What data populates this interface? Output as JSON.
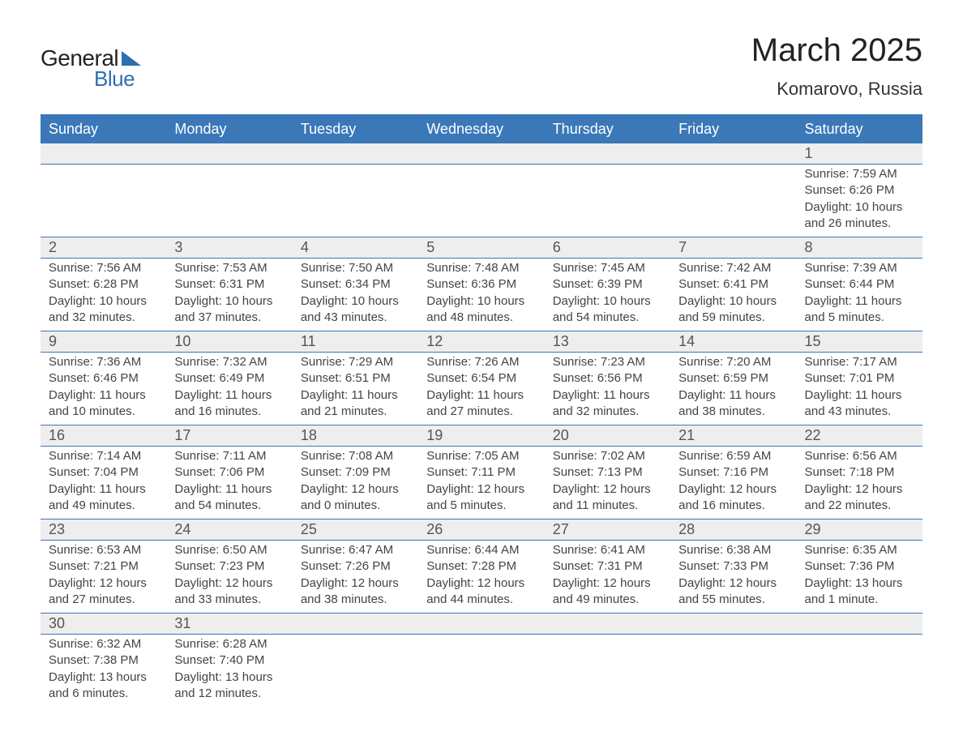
{
  "logo": {
    "general": "General",
    "blue": "Blue"
  },
  "title": {
    "month": "March 2025",
    "location": "Komarovo, Russia"
  },
  "colors": {
    "header_bg": "#3a78b8",
    "header_text": "#ffffff",
    "daynum_bg": "#eeeeee",
    "border": "#3a78b8",
    "body_text": "#444444",
    "logo_blue": "#2e6fb0",
    "background": "#ffffff"
  },
  "weekdays": [
    "Sunday",
    "Monday",
    "Tuesday",
    "Wednesday",
    "Thursday",
    "Friday",
    "Saturday"
  ],
  "weeks": [
    [
      null,
      null,
      null,
      null,
      null,
      null,
      {
        "d": "1",
        "sr": "Sunrise: 7:59 AM",
        "ss": "Sunset: 6:26 PM",
        "dl1": "Daylight: 10 hours",
        "dl2": "and 26 minutes."
      }
    ],
    [
      {
        "d": "2",
        "sr": "Sunrise: 7:56 AM",
        "ss": "Sunset: 6:28 PM",
        "dl1": "Daylight: 10 hours",
        "dl2": "and 32 minutes."
      },
      {
        "d": "3",
        "sr": "Sunrise: 7:53 AM",
        "ss": "Sunset: 6:31 PM",
        "dl1": "Daylight: 10 hours",
        "dl2": "and 37 minutes."
      },
      {
        "d": "4",
        "sr": "Sunrise: 7:50 AM",
        "ss": "Sunset: 6:34 PM",
        "dl1": "Daylight: 10 hours",
        "dl2": "and 43 minutes."
      },
      {
        "d": "5",
        "sr": "Sunrise: 7:48 AM",
        "ss": "Sunset: 6:36 PM",
        "dl1": "Daylight: 10 hours",
        "dl2": "and 48 minutes."
      },
      {
        "d": "6",
        "sr": "Sunrise: 7:45 AM",
        "ss": "Sunset: 6:39 PM",
        "dl1": "Daylight: 10 hours",
        "dl2": "and 54 minutes."
      },
      {
        "d": "7",
        "sr": "Sunrise: 7:42 AM",
        "ss": "Sunset: 6:41 PM",
        "dl1": "Daylight: 10 hours",
        "dl2": "and 59 minutes."
      },
      {
        "d": "8",
        "sr": "Sunrise: 7:39 AM",
        "ss": "Sunset: 6:44 PM",
        "dl1": "Daylight: 11 hours",
        "dl2": "and 5 minutes."
      }
    ],
    [
      {
        "d": "9",
        "sr": "Sunrise: 7:36 AM",
        "ss": "Sunset: 6:46 PM",
        "dl1": "Daylight: 11 hours",
        "dl2": "and 10 minutes."
      },
      {
        "d": "10",
        "sr": "Sunrise: 7:32 AM",
        "ss": "Sunset: 6:49 PM",
        "dl1": "Daylight: 11 hours",
        "dl2": "and 16 minutes."
      },
      {
        "d": "11",
        "sr": "Sunrise: 7:29 AM",
        "ss": "Sunset: 6:51 PM",
        "dl1": "Daylight: 11 hours",
        "dl2": "and 21 minutes."
      },
      {
        "d": "12",
        "sr": "Sunrise: 7:26 AM",
        "ss": "Sunset: 6:54 PM",
        "dl1": "Daylight: 11 hours",
        "dl2": "and 27 minutes."
      },
      {
        "d": "13",
        "sr": "Sunrise: 7:23 AM",
        "ss": "Sunset: 6:56 PM",
        "dl1": "Daylight: 11 hours",
        "dl2": "and 32 minutes."
      },
      {
        "d": "14",
        "sr": "Sunrise: 7:20 AM",
        "ss": "Sunset: 6:59 PM",
        "dl1": "Daylight: 11 hours",
        "dl2": "and 38 minutes."
      },
      {
        "d": "15",
        "sr": "Sunrise: 7:17 AM",
        "ss": "Sunset: 7:01 PM",
        "dl1": "Daylight: 11 hours",
        "dl2": "and 43 minutes."
      }
    ],
    [
      {
        "d": "16",
        "sr": "Sunrise: 7:14 AM",
        "ss": "Sunset: 7:04 PM",
        "dl1": "Daylight: 11 hours",
        "dl2": "and 49 minutes."
      },
      {
        "d": "17",
        "sr": "Sunrise: 7:11 AM",
        "ss": "Sunset: 7:06 PM",
        "dl1": "Daylight: 11 hours",
        "dl2": "and 54 minutes."
      },
      {
        "d": "18",
        "sr": "Sunrise: 7:08 AM",
        "ss": "Sunset: 7:09 PM",
        "dl1": "Daylight: 12 hours",
        "dl2": "and 0 minutes."
      },
      {
        "d": "19",
        "sr": "Sunrise: 7:05 AM",
        "ss": "Sunset: 7:11 PM",
        "dl1": "Daylight: 12 hours",
        "dl2": "and 5 minutes."
      },
      {
        "d": "20",
        "sr": "Sunrise: 7:02 AM",
        "ss": "Sunset: 7:13 PM",
        "dl1": "Daylight: 12 hours",
        "dl2": "and 11 minutes."
      },
      {
        "d": "21",
        "sr": "Sunrise: 6:59 AM",
        "ss": "Sunset: 7:16 PM",
        "dl1": "Daylight: 12 hours",
        "dl2": "and 16 minutes."
      },
      {
        "d": "22",
        "sr": "Sunrise: 6:56 AM",
        "ss": "Sunset: 7:18 PM",
        "dl1": "Daylight: 12 hours",
        "dl2": "and 22 minutes."
      }
    ],
    [
      {
        "d": "23",
        "sr": "Sunrise: 6:53 AM",
        "ss": "Sunset: 7:21 PM",
        "dl1": "Daylight: 12 hours",
        "dl2": "and 27 minutes."
      },
      {
        "d": "24",
        "sr": "Sunrise: 6:50 AM",
        "ss": "Sunset: 7:23 PM",
        "dl1": "Daylight: 12 hours",
        "dl2": "and 33 minutes."
      },
      {
        "d": "25",
        "sr": "Sunrise: 6:47 AM",
        "ss": "Sunset: 7:26 PM",
        "dl1": "Daylight: 12 hours",
        "dl2": "and 38 minutes."
      },
      {
        "d": "26",
        "sr": "Sunrise: 6:44 AM",
        "ss": "Sunset: 7:28 PM",
        "dl1": "Daylight: 12 hours",
        "dl2": "and 44 minutes."
      },
      {
        "d": "27",
        "sr": "Sunrise: 6:41 AM",
        "ss": "Sunset: 7:31 PM",
        "dl1": "Daylight: 12 hours",
        "dl2": "and 49 minutes."
      },
      {
        "d": "28",
        "sr": "Sunrise: 6:38 AM",
        "ss": "Sunset: 7:33 PM",
        "dl1": "Daylight: 12 hours",
        "dl2": "and 55 minutes."
      },
      {
        "d": "29",
        "sr": "Sunrise: 6:35 AM",
        "ss": "Sunset: 7:36 PM",
        "dl1": "Daylight: 13 hours",
        "dl2": "and 1 minute."
      }
    ],
    [
      {
        "d": "30",
        "sr": "Sunrise: 6:32 AM",
        "ss": "Sunset: 7:38 PM",
        "dl1": "Daylight: 13 hours",
        "dl2": "and 6 minutes."
      },
      {
        "d": "31",
        "sr": "Sunrise: 6:28 AM",
        "ss": "Sunset: 7:40 PM",
        "dl1": "Daylight: 13 hours",
        "dl2": "and 12 minutes."
      },
      null,
      null,
      null,
      null,
      null
    ]
  ]
}
